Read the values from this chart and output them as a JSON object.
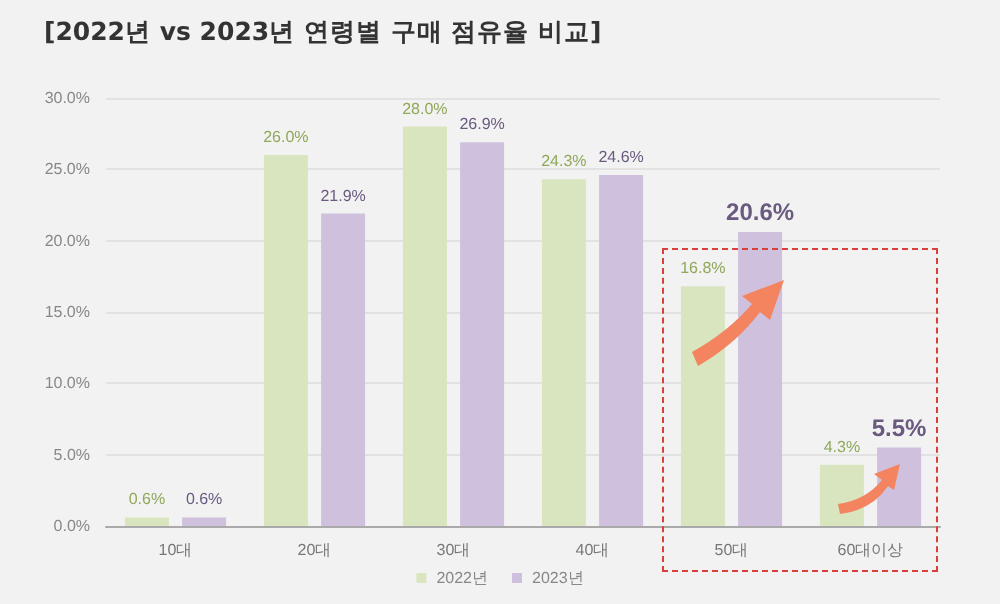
{
  "chart_data": {
    "type": "bar",
    "title": "[2022년 vs 2023년 연령별 구매 점유율 비교]",
    "categories": [
      "10대",
      "20대",
      "30대",
      "40대",
      "50대",
      "60대이상"
    ],
    "series": [
      {
        "name": "2022년",
        "color": "#d9e5bf",
        "values": [
          0.6,
          26.0,
          28.0,
          24.3,
          16.8,
          4.3
        ],
        "value_labels": [
          "0.6%",
          "26.0%",
          "28.0%",
          "24.3%",
          "16.8%",
          "4.3%"
        ]
      },
      {
        "name": "2023년",
        "color": "#cfc0dd",
        "values": [
          0.6,
          21.9,
          26.9,
          24.6,
          20.6,
          5.5
        ],
        "value_labels": [
          "0.6%",
          "21.9%",
          "26.9%",
          "24.6%",
          "20.6%",
          "5.5%"
        ]
      }
    ],
    "ylim": [
      0,
      30
    ],
    "yticks": [
      {
        "value": 0,
        "label": "0.0%"
      },
      {
        "value": 5,
        "label": "5.0%"
      },
      {
        "value": 10,
        "label": "10.0%"
      },
      {
        "value": 15,
        "label": "15.0%"
      },
      {
        "value": 20,
        "label": "20.0%"
      },
      {
        "value": 25,
        "label": "25.0%"
      },
      {
        "value": 30,
        "label": "30.0%"
      }
    ],
    "grid": "y",
    "legend": "bottom"
  }
}
